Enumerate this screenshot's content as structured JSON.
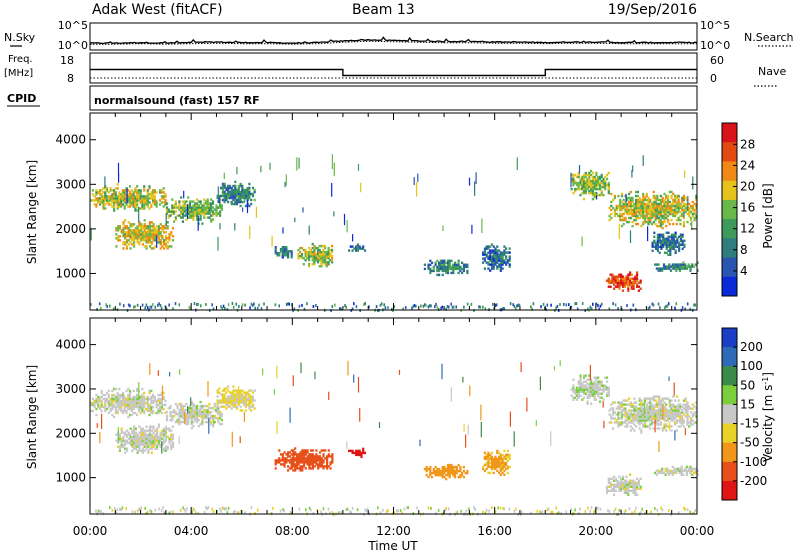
{
  "header": {
    "title": "Adak West (fitACF)",
    "beam": "Beam 13",
    "date": "19/Sep/2016"
  },
  "panels": {
    "nsky_label": "N.Sky",
    "nsky_ticks": [
      "10^5",
      "10^0"
    ],
    "nsearch_label": "N.Search",
    "nsearch_ticks": [
      "10^5",
      "10^0"
    ],
    "freq_label": "Freq.",
    "freq_unit": "[MHz]",
    "freq_ticks": [
      "18",
      "8"
    ],
    "nave_label": "Nave",
    "nave_ticks": [
      "60",
      "0"
    ],
    "cpid_label": "CPID",
    "cpid_value": "normalsound (fast) 157 RF"
  },
  "colors": {
    "power": [
      "#0a2ad8",
      "#2a55b0",
      "#2f7d7c",
      "#3c9a5b",
      "#6ab84a",
      "#e6c21a",
      "#f08a14",
      "#e24a12",
      "#d8141a"
    ],
    "velocity": [
      "#1b3fc4",
      "#2d6bb8",
      "#3c8a4a",
      "#7ccf3c",
      "#c8c8c8",
      "#e8d22a",
      "#f0961a",
      "#e8501a",
      "#e01414"
    ]
  },
  "chart_data": [
    {
      "type": "line",
      "name": "nsky-nsearch-panel",
      "x_range_hours": [
        0,
        24
      ],
      "nsky_level_log": [
        1.2,
        1.2,
        1.3,
        1.2,
        1.3,
        1.4,
        1.3,
        1.3,
        1.2,
        1.3,
        1.6,
        1.8,
        1.7,
        1.6,
        1.5,
        1.5,
        1.4,
        1.4,
        1.3,
        1.4,
        1.4,
        1.3,
        1.3,
        1.3,
        1.3
      ],
      "ylim_log": [
        0,
        5
      ]
    },
    {
      "type": "line",
      "name": "freq-nave-panel",
      "x_range_hours": [
        0,
        24
      ],
      "freq_segments": [
        {
          "start": "00:00",
          "end": "10:00",
          "mhz": 12.5
        },
        {
          "start": "10:00",
          "end": "18:00",
          "mhz": 10.5
        },
        {
          "start": "18:00",
          "end": "24:00",
          "mhz": 12.5
        }
      ],
      "freq_ylim": [
        8,
        18
      ],
      "nave_value": 10,
      "nave_ylim": [
        0,
        60
      ]
    },
    {
      "type": "heatmap",
      "name": "power-panel",
      "xlabel": "",
      "ylabel": "Slant Range [km]",
      "xlim_hours": [
        0,
        24
      ],
      "ylim_km": [
        180,
        4600
      ],
      "y_ticks": [
        1000,
        2000,
        3000,
        4000
      ],
      "colorbar": {
        "label": "Power [dB]",
        "ticks": [
          "4",
          "8",
          "12",
          "16",
          "20",
          "24",
          "28"
        ],
        "range": [
          0,
          30
        ]
      },
      "echo_regions": [
        {
          "t0": 0.0,
          "t1": 3.0,
          "r0": 2350,
          "r1": 3000,
          "level": 17
        },
        {
          "t0": 1.0,
          "t1": 3.3,
          "r0": 1500,
          "r1": 2200,
          "level": 18
        },
        {
          "t0": 3.0,
          "t1": 5.2,
          "r0": 2100,
          "r1": 2700,
          "level": 14
        },
        {
          "t0": 5.0,
          "t1": 6.5,
          "r0": 2450,
          "r1": 3050,
          "level": 9
        },
        {
          "t0": 7.3,
          "t1": 8.0,
          "r0": 1300,
          "r1": 1600,
          "level": 8
        },
        {
          "t0": 8.2,
          "t1": 9.6,
          "r0": 1100,
          "r1": 1650,
          "level": 16
        },
        {
          "t0": 10.2,
          "t1": 10.9,
          "r0": 1450,
          "r1": 1650,
          "level": 8
        },
        {
          "t0": 13.2,
          "t1": 14.9,
          "r0": 950,
          "r1": 1300,
          "level": 9
        },
        {
          "t0": 15.5,
          "t1": 16.6,
          "r0": 1000,
          "r1": 1650,
          "level": 7
        },
        {
          "t0": 19.0,
          "t1": 20.5,
          "r0": 2650,
          "r1": 3300,
          "level": 15
        },
        {
          "t0": 20.5,
          "t1": 24.0,
          "r0": 2000,
          "r1": 2850,
          "level": 17
        },
        {
          "t0": 22.2,
          "t1": 23.5,
          "r0": 1400,
          "r1": 1950,
          "level": 8
        },
        {
          "t0": 20.4,
          "t1": 21.8,
          "r0": 550,
          "r1": 1050,
          "level": 26
        },
        {
          "t0": 22.3,
          "t1": 24.0,
          "r0": 1000,
          "r1": 1250,
          "level": 9
        }
      ]
    },
    {
      "type": "heatmap",
      "name": "velocity-panel",
      "xlabel": "Time UT",
      "ylabel": "Slant Range [km]",
      "xlim_hours": [
        0,
        24
      ],
      "x_ticks": [
        "00:00",
        "04:00",
        "08:00",
        "12:00",
        "16:00",
        "20:00",
        "00:00"
      ],
      "ylim_km": [
        180,
        4600
      ],
      "y_ticks": [
        1000,
        2000,
        3000,
        4000
      ],
      "colorbar": {
        "label": "Velocity [m s^-1]",
        "ticks": [
          "200",
          "100",
          "50",
          "15",
          "-15",
          "-50",
          "-100",
          "-200"
        ],
        "range": [
          -250,
          250
        ]
      },
      "echo_regions": [
        {
          "t0": 0.0,
          "t1": 3.0,
          "r0": 2350,
          "r1": 3000,
          "level": 0
        },
        {
          "t0": 1.0,
          "t1": 3.3,
          "r0": 1500,
          "r1": 2200,
          "level": 0
        },
        {
          "t0": 3.0,
          "t1": 5.2,
          "r0": 2100,
          "r1": 2700,
          "level": 0
        },
        {
          "t0": 5.0,
          "t1": 6.5,
          "r0": 2450,
          "r1": 3050,
          "level": -20
        },
        {
          "t0": 7.3,
          "t1": 9.6,
          "r0": 1100,
          "r1": 1650,
          "level": -160
        },
        {
          "t0": 10.2,
          "t1": 10.9,
          "r0": 1450,
          "r1": 1650,
          "level": -220
        },
        {
          "t0": 13.2,
          "t1": 14.9,
          "r0": 950,
          "r1": 1300,
          "level": -70
        },
        {
          "t0": 15.5,
          "t1": 16.6,
          "r0": 1000,
          "r1": 1650,
          "level": -60
        },
        {
          "t0": 19.0,
          "t1": 20.5,
          "r0": 2650,
          "r1": 3300,
          "level": 5
        },
        {
          "t0": 20.5,
          "t1": 24.0,
          "r0": 2000,
          "r1": 2850,
          "level": 0
        },
        {
          "t0": 20.4,
          "t1": 21.8,
          "r0": 550,
          "r1": 1050,
          "level": 0
        },
        {
          "t0": 22.3,
          "t1": 24.0,
          "r0": 1000,
          "r1": 1250,
          "level": 0
        }
      ]
    }
  ]
}
